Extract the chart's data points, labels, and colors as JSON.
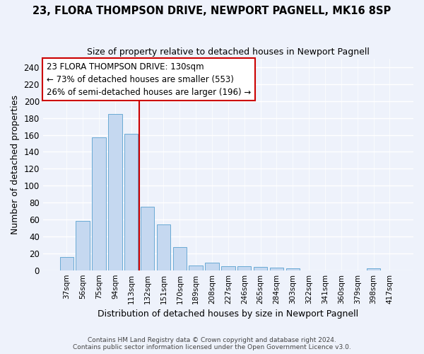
{
  "title": "23, FLORA THOMPSON DRIVE, NEWPORT PAGNELL, MK16 8SP",
  "subtitle": "Size of property relative to detached houses in Newport Pagnell",
  "xlabel": "Distribution of detached houses by size in Newport Pagnell",
  "ylabel": "Number of detached properties",
  "bar_color": "#c5d8f0",
  "bar_edge_color": "#6aaad4",
  "background_color": "#eef2fb",
  "grid_color": "#ffffff",
  "categories": [
    "37sqm",
    "56sqm",
    "75sqm",
    "94sqm",
    "113sqm",
    "132sqm",
    "151sqm",
    "170sqm",
    "189sqm",
    "208sqm",
    "227sqm",
    "246sqm",
    "265sqm",
    "284sqm",
    "303sqm",
    "322sqm",
    "341sqm",
    "360sqm",
    "379sqm",
    "398sqm",
    "417sqm"
  ],
  "values": [
    16,
    58,
    157,
    185,
    161,
    75,
    54,
    27,
    6,
    9,
    5,
    5,
    4,
    3,
    2,
    0,
    0,
    0,
    0,
    2,
    0
  ],
  "ylim": [
    0,
    250
  ],
  "yticks": [
    0,
    20,
    40,
    60,
    80,
    100,
    120,
    140,
    160,
    180,
    200,
    220,
    240
  ],
  "vline_x": 5.0,
  "vline_color": "#cc0000",
  "annotation_text": "23 FLORA THOMPSON DRIVE: 130sqm\n← 73% of detached houses are smaller (553)\n26% of semi-detached houses are larger (196) →",
  "annotation_box_color": "#ffffff",
  "annotation_box_edge": "#cc0000",
  "footer_line1": "Contains HM Land Registry data © Crown copyright and database right 2024.",
  "footer_line2": "Contains public sector information licensed under the Open Government Licence v3.0."
}
